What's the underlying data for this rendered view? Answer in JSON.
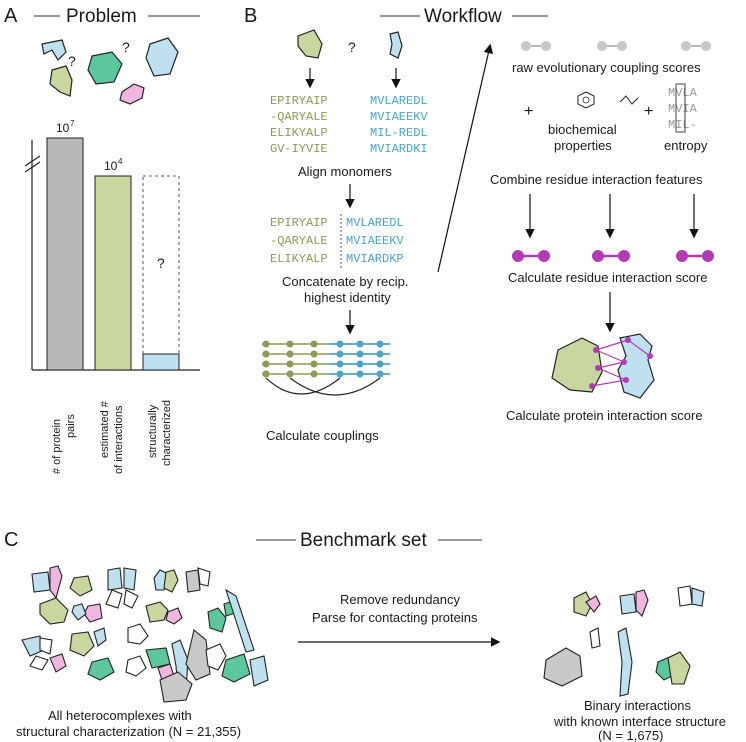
{
  "panels": {
    "a": {
      "letter": "A",
      "title": "Problem"
    },
    "b": {
      "letter": "B",
      "title": "Workflow"
    },
    "c": {
      "letter": "C",
      "title": "Benchmark set"
    }
  },
  "problem": {
    "question_mark": "?",
    "bars": [
      {
        "label_line1": "# of protein",
        "label_line2": "pairs",
        "value_label": "10",
        "value_exp": "7",
        "color": "#b8b8b8"
      },
      {
        "label_line1": "estimated #",
        "label_line2": "of interactions",
        "value_label": "10",
        "value_exp": "4",
        "color": "#c9d6a0"
      },
      {
        "label_line1": "structurally",
        "label_line2": "characterized",
        "value_label": "?",
        "value_exp": "",
        "color": "#bfe0ef"
      }
    ]
  },
  "workflow": {
    "question_mark": "?",
    "seqs_left": [
      "EPIRYAIP",
      "-QARYALE",
      "ELIKYALP",
      "GV-IYVIE"
    ],
    "seqs_right": [
      "MVLAREDL",
      "MVIAEEKV",
      "MIL-REDL",
      "MVIARDKI"
    ],
    "align_label": "Align monomers",
    "concat_left": [
      "EPIRYAIP",
      "-QARYALE",
      "ELIKYALP"
    ],
    "concat_right": [
      "MVLAREDL",
      "MVIAEEKV",
      "MVIARDKP"
    ],
    "concat_label_1": "Concatenate by recip.",
    "concat_label_2": "highest identity",
    "couplings_label": "Calculate couplings",
    "raw_scores_label": "raw evolutionary coupling scores",
    "plus": "+",
    "biochem_1": "biochemical",
    "biochem_2": "properties",
    "entropy_seqs": [
      "MVLA",
      "MVIA",
      "MIL-"
    ],
    "entropy_label": "entropy",
    "combine_label": "Combine residue interaction features",
    "residue_score_label": "Calculate residue interaction score",
    "protein_score_label": "Calculate protein interaction score"
  },
  "benchmark": {
    "arrow_label_1": "Remove redundancy",
    "arrow_label_2": "Parse for contacting proteins",
    "left_caption_1": "All heterocomplexes with",
    "left_caption_2": "structural characterization (N = 21,355)",
    "right_caption_1": "Binary interactions",
    "right_caption_2": "with known interface structure",
    "right_caption_3": "(N = 1,675)"
  },
  "colors": {
    "green": "#c9d6a0",
    "blue": "#bfe0ef",
    "pink": "#f0b6e0",
    "teal": "#5cc79c",
    "grey": "#c8c8c8",
    "magenta": "#b23bb5",
    "seq_green": "#8c9a55",
    "seq_blue": "#4ba3c8"
  }
}
